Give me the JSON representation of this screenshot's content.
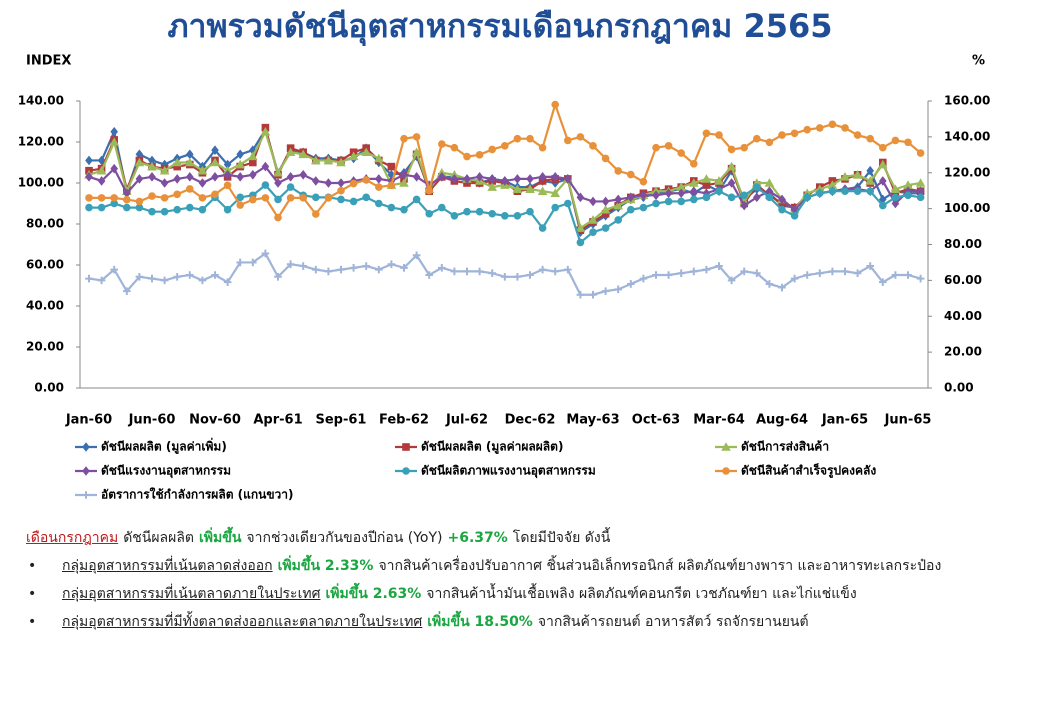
{
  "chart_data": {
    "type": "line",
    "title": "ภาพรวมดัชนีอุตสาหกรรมเดือนกรกฎาคม 2565",
    "ylabel": "INDEX",
    "y2label": "%",
    "categories": [
      "Jan-60",
      null,
      null,
      null,
      null,
      "Jun-60",
      null,
      null,
      null,
      null,
      "Nov-60",
      null,
      null,
      null,
      null,
      "Apr-61",
      null,
      null,
      null,
      null,
      "Sep-61",
      null,
      null,
      null,
      null,
      "Feb-62",
      null,
      null,
      null,
      null,
      "Jul-62",
      null,
      null,
      null,
      null,
      "Dec-62",
      null,
      null,
      null,
      null,
      "May-63",
      null,
      null,
      null,
      null,
      "Oct-63",
      null,
      null,
      null,
      null,
      "Mar-64",
      null,
      null,
      null,
      null,
      "Aug-64",
      null,
      null,
      null,
      null,
      "Jan-65",
      null,
      null,
      null,
      null,
      "Jun-65",
      null
    ],
    "ylim": [
      0,
      140
    ],
    "yticks": [
      {
        "value": 0,
        "label": "0.00"
      },
      {
        "value": 20,
        "label": "20.00"
      },
      {
        "value": 40,
        "label": "40.00"
      },
      {
        "value": 60,
        "label": "60.00"
      },
      {
        "value": 80,
        "label": "80.00"
      },
      {
        "value": 100,
        "label": "100.00"
      },
      {
        "value": 120,
        "label": "120.00"
      },
      {
        "value": 140,
        "label": "140.00"
      }
    ],
    "y2lim": [
      0,
      160
    ],
    "y2ticks": [
      {
        "value": 0,
        "label": "0.00"
      },
      {
        "value": 20,
        "label": "20.00"
      },
      {
        "value": 40,
        "label": "40.00"
      },
      {
        "value": 60,
        "label": "60.00"
      },
      {
        "value": 80,
        "label": "80.00"
      },
      {
        "value": 100,
        "label": "100.00"
      },
      {
        "value": 120,
        "label": "120.00"
      },
      {
        "value": 140,
        "label": "140.00"
      },
      {
        "value": 160,
        "label": "160.00"
      }
    ],
    "series": [
      {
        "name": "ดัชนีผลผลิต (มูลค่าเพิ่ม)",
        "color": "#3b6fb0",
        "marker": "diamond",
        "values": [
          111,
          111,
          125,
          96,
          114,
          111,
          109,
          112,
          114,
          108,
          116,
          109,
          114,
          116,
          126,
          105,
          116,
          115,
          112,
          112,
          111,
          112,
          117,
          110,
          104,
          105,
          113,
          97,
          103,
          103,
          101,
          100,
          102,
          101,
          98,
          98,
          101,
          100,
          102,
          76,
          80,
          84,
          88,
          92,
          93,
          95,
          96,
          97,
          95,
          99,
          96,
          106,
          92,
          97,
          95,
          89,
          88,
          93,
          95,
          96,
          97,
          98,
          106,
          92,
          96,
          95,
          95
        ]
      },
      {
        "name": "ดัชนีผลผลิต (มูลค่าผลผลิต)",
        "color": "#b23a3a",
        "marker": "square",
        "values": [
          106,
          107,
          121,
          97,
          111,
          108,
          107,
          108,
          109,
          105,
          111,
          103,
          108,
          110,
          127,
          104,
          117,
          115,
          111,
          111,
          111,
          115,
          117,
          111,
          108,
          102,
          114,
          96,
          103,
          101,
          100,
          100,
          101,
          100,
          96,
          97,
          101,
          102,
          102,
          77,
          81,
          85,
          89,
          93,
          95,
          96,
          97,
          98,
          101,
          99,
          100,
          107,
          90,
          99,
          94,
          90,
          88,
          94,
          98,
          101,
          102,
          104,
          100,
          110,
          95,
          97,
          96
        ]
      },
      {
        "name": "ดัชนีการส่งสินค้า",
        "color": "#9bbb59",
        "marker": "triangle",
        "values": [
          104,
          106,
          120,
          96,
          110,
          108,
          106,
          110,
          110,
          106,
          110,
          106,
          109,
          113,
          125,
          105,
          115,
          114,
          111,
          111,
          110,
          113,
          115,
          112,
          99,
          100,
          115,
          97,
          105,
          104,
          102,
          101,
          98,
          99,
          97,
          97,
          96,
          95,
          102,
          78,
          82,
          87,
          89,
          92,
          94,
          96,
          96,
          98,
          100,
          102,
          101,
          108,
          91,
          100,
          100,
          92,
          87,
          95,
          97,
          99,
          103,
          104,
          101,
          109,
          97,
          99,
          100
        ]
      },
      {
        "name": "ดัชนีแรงงานอุตสาหกรรม",
        "color": "#7e4fa0",
        "marker": "diamond",
        "values": [
          103,
          101,
          107,
          95,
          102,
          103,
          100,
          102,
          103,
          100,
          103,
          104,
          103,
          104,
          108,
          100,
          103,
          104,
          101,
          100,
          100,
          101,
          102,
          102,
          101,
          104,
          103,
          99,
          103,
          102,
          102,
          103,
          102,
          101,
          102,
          102,
          103,
          103,
          102,
          93,
          91,
          91,
          92,
          93,
          94,
          94,
          95,
          95,
          96,
          95,
          97,
          100,
          89,
          93,
          96,
          92,
          87,
          93,
          95,
          96,
          97,
          97,
          96,
          101,
          90,
          96,
          96
        ]
      },
      {
        "name": "ดัชนีผลิตภาพแรงงานอุตสาหกรรม",
        "color": "#3aa0b8",
        "marker": "circle",
        "values": [
          88,
          88,
          90,
          88,
          88,
          86,
          86,
          87,
          88,
          87,
          93,
          87,
          93,
          94,
          99,
          92,
          98,
          94,
          93,
          93,
          92,
          91,
          93,
          90,
          88,
          87,
          92,
          85,
          88,
          84,
          86,
          86,
          85,
          84,
          84,
          86,
          78,
          88,
          90,
          71,
          76,
          78,
          82,
          87,
          88,
          90,
          91,
          91,
          92,
          93,
          96,
          93,
          94,
          98,
          93,
          87,
          84,
          93,
          95,
          96,
          96,
          96,
          96,
          89,
          93,
          94,
          93
        ]
      },
      {
        "name": "ดัชนีสินค้าสำเร็จรูปคงคลัง",
        "color": "#e8913a",
        "marker": "circle",
        "axis": "y2",
        "values": [
          106,
          106,
          106,
          105,
          104,
          107,
          106,
          108,
          111,
          106,
          108,
          113,
          102,
          105,
          106,
          95,
          106,
          106,
          97,
          106,
          110,
          114,
          116,
          112,
          113,
          139,
          140,
          110,
          136,
          134,
          129,
          130,
          133,
          135,
          139,
          139,
          134,
          158,
          138,
          140,
          135,
          128,
          121,
          119,
          115,
          134,
          135,
          131,
          125,
          142,
          141,
          133,
          134,
          139,
          137,
          141,
          142,
          144,
          145,
          147,
          145,
          141,
          139,
          134,
          138,
          137,
          131
        ]
      },
      {
        "name": "อัตราการใช้กำลังการผลิต (แกนขวา)",
        "color": "#9fb4d8",
        "marker": "plus",
        "axis": "y2",
        "values": [
          61,
          60,
          66,
          54,
          62,
          61,
          60,
          62,
          63,
          60,
          63,
          59,
          70,
          70,
          75,
          62,
          69,
          68,
          66,
          65,
          66,
          67,
          68,
          66,
          69,
          67,
          74,
          63,
          67,
          65,
          65,
          65,
          64,
          62,
          62,
          63,
          66,
          65,
          66,
          52,
          52,
          54,
          55,
          58,
          61,
          63,
          63,
          64,
          65,
          66,
          68,
          60,
          65,
          64,
          58,
          56,
          61,
          63,
          64,
          65,
          65,
          64,
          68,
          59,
          63,
          63,
          61
        ]
      }
    ]
  },
  "summary": {
    "month": "เดือนกรกฎาคม",
    "text1": "ดัชนีผลผลิต",
    "change": "เพิ่มขึ้น",
    "text2": "จากช่วงเดียวกันของปีก่อน (YoY)",
    "yoy": "+6.37%",
    "text3": "โดยมีปัจจัย ดังนี้",
    "bullets": [
      {
        "group": "กลุ่มอุตสาหกรรมที่เน้นตลาดส่งออก",
        "change": "เพิ่มขึ้น 2.33%",
        "detail": "จากสินค้าเครื่องปรับอากาศ ชิ้นส่วนอิเล็กทรอนิกส์ ผลิตภัณฑ์ยางพารา และอาหารทะเลกระป๋อง"
      },
      {
        "group": "กลุ่มอุตสาหกรรมที่เน้นตลาดภายในประเทศ",
        "change": "เพิ่มขึ้น 2.63%",
        "detail": "จากสินค้าน้ำมันเชื้อเพลิง ผลิตภัณฑ์คอนกรีต เวชภัณฑ์ยา และไก่แช่แข็ง"
      },
      {
        "group": "กลุ่มอุตสาหกรรมที่มีทั้งตลาดส่งออกและตลาดภายในประเทศ",
        "change": "เพิ่มขึ้น 18.50%",
        "detail": "จากสินค้ารถยนต์ อาหารสัตว์ รถจักรยานยนต์"
      }
    ]
  }
}
